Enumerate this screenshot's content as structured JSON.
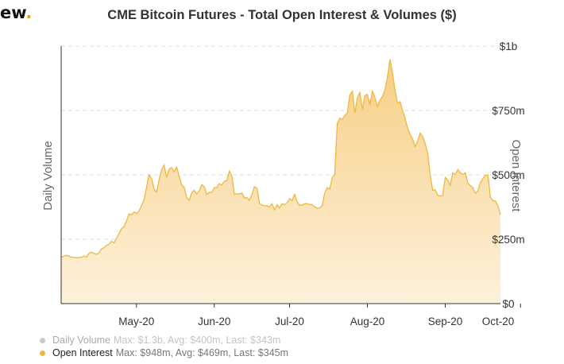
{
  "logo": {
    "text": "ew",
    "dot": "."
  },
  "chart_data": {
    "type": "area",
    "title": "CME Bitcoin Futures - Total Open Interest & Volumes ($)",
    "left_axis_label": "Daily Volume",
    "right_axis_label": "Open Interest",
    "y_ticks": [
      "$0",
      "$250m",
      "$500m",
      "$750m",
      "$1b"
    ],
    "y_tick_values": [
      0,
      250,
      500,
      750,
      1000
    ],
    "ylim": [
      0,
      1000
    ],
    "unit": "$m",
    "x_ticks": [
      "May-20",
      "Jun-20",
      "Jul-20",
      "Aug-20",
      "Sep-20",
      "Oct-20"
    ],
    "x_tick_days": [
      30,
      61,
      91,
      122,
      153,
      183
    ],
    "grid": "horizontal dashed",
    "legend_placement": "bottom-left",
    "colors": {
      "open_interest": "#f0b73f",
      "area_top": "#f7cf84",
      "area_bottom": "#fdf1dc",
      "volume_inactive": "#c9c9c9"
    },
    "series": [
      {
        "name": "Open Interest",
        "stats": "Max: $948m, Avg: $469m, Last: $345m",
        "points": [
          [
            0,
            180
          ],
          [
            2,
            188
          ],
          [
            4,
            181
          ],
          [
            6,
            178
          ],
          [
            8,
            180
          ],
          [
            9,
            185
          ],
          [
            10,
            180
          ],
          [
            11,
            194
          ],
          [
            12,
            200
          ],
          [
            13,
            196
          ],
          [
            14,
            191
          ],
          [
            15,
            196
          ],
          [
            16,
            212
          ],
          [
            17,
            216
          ],
          [
            18,
            226
          ],
          [
            19,
            230
          ],
          [
            20,
            242
          ],
          [
            21,
            236
          ],
          [
            22,
            252
          ],
          [
            23,
            272
          ],
          [
            24,
            290
          ],
          [
            25,
            298
          ],
          [
            26,
            320
          ],
          [
            27,
            348
          ],
          [
            28,
            345
          ],
          [
            29,
            356
          ],
          [
            30,
            350
          ],
          [
            31,
            360
          ],
          [
            32,
            380
          ],
          [
            33,
            402
          ],
          [
            34,
            450
          ],
          [
            35,
            500
          ],
          [
            36,
            486
          ],
          [
            37,
            445
          ],
          [
            38,
            432
          ],
          [
            39,
            480
          ],
          [
            40,
            520
          ],
          [
            41,
            538
          ],
          [
            42,
            490
          ],
          [
            43,
            522
          ],
          [
            44,
            528
          ],
          [
            45,
            512
          ],
          [
            46,
            530
          ],
          [
            47,
            496
          ],
          [
            48,
            460
          ],
          [
            49,
            452
          ],
          [
            50,
            412
          ],
          [
            51,
            402
          ],
          [
            52,
            430
          ],
          [
            53,
            440
          ],
          [
            54,
            426
          ],
          [
            55,
            438
          ],
          [
            56,
            462
          ],
          [
            57,
            454
          ],
          [
            58,
            424
          ],
          [
            59,
            432
          ],
          [
            60,
            432
          ],
          [
            61,
            450
          ],
          [
            62,
            450
          ],
          [
            63,
            466
          ],
          [
            64,
            460
          ],
          [
            65,
            476
          ],
          [
            66,
            478
          ],
          [
            67,
            514
          ],
          [
            68,
            495
          ],
          [
            69,
            426
          ],
          [
            70,
            426
          ],
          [
            71,
            426
          ],
          [
            72,
            430
          ],
          [
            73,
            410
          ],
          [
            74,
            412
          ],
          [
            75,
            402
          ],
          [
            76,
            424
          ],
          [
            77,
            454
          ],
          [
            78,
            448
          ],
          [
            79,
            390
          ],
          [
            80,
            382
          ],
          [
            81,
            380
          ],
          [
            82,
            380
          ],
          [
            83,
            375
          ],
          [
            84,
            388
          ],
          [
            85,
            364
          ],
          [
            86,
            384
          ],
          [
            87,
            372
          ],
          [
            88,
            388
          ],
          [
            89,
            384
          ],
          [
            90,
            392
          ],
          [
            91,
            408
          ],
          [
            92,
            400
          ],
          [
            93,
            424
          ],
          [
            94,
            396
          ],
          [
            95,
            382
          ],
          [
            96,
            382
          ],
          [
            97,
            388
          ],
          [
            98,
            388
          ],
          [
            99,
            385
          ],
          [
            100,
            385
          ],
          [
            101,
            376
          ],
          [
            102,
            370
          ],
          [
            103,
            372
          ],
          [
            104,
            380
          ],
          [
            105,
            430
          ],
          [
            106,
            450
          ],
          [
            107,
            445
          ],
          [
            108,
            490
          ],
          [
            109,
            500
          ],
          [
            110,
            700
          ],
          [
            111,
            720
          ],
          [
            112,
            716
          ],
          [
            113,
            730
          ],
          [
            114,
            740
          ],
          [
            115,
            810
          ],
          [
            116,
            825
          ],
          [
            117,
            740
          ],
          [
            118,
            800
          ],
          [
            119,
            820
          ],
          [
            120,
            755
          ],
          [
            121,
            808
          ],
          [
            122,
            812
          ],
          [
            123,
            772
          ],
          [
            124,
            825
          ],
          [
            125,
            800
          ],
          [
            126,
            765
          ],
          [
            127,
            790
          ],
          [
            128,
            805
          ],
          [
            129,
            830
          ],
          [
            130,
            880
          ],
          [
            131,
            948
          ],
          [
            132,
            895
          ],
          [
            133,
            828
          ],
          [
            134,
            778
          ],
          [
            135,
            784
          ],
          [
            136,
            750
          ],
          [
            137,
            720
          ],
          [
            138,
            682
          ],
          [
            139,
            658
          ],
          [
            140,
            640
          ],
          [
            141,
            610
          ],
          [
            142,
            630
          ],
          [
            143,
            662
          ],
          [
            144,
            650
          ],
          [
            145,
            622
          ],
          [
            146,
            585
          ],
          [
            147,
            500
          ],
          [
            148,
            440
          ],
          [
            149,
            442
          ],
          [
            150,
            420
          ],
          [
            151,
            418
          ],
          [
            152,
            420
          ],
          [
            153,
            490
          ],
          [
            154,
            480
          ],
          [
            155,
            460
          ],
          [
            156,
            508
          ],
          [
            157,
            500
          ],
          [
            158,
            520
          ],
          [
            159,
            508
          ],
          [
            160,
            502
          ],
          [
            161,
            508
          ],
          [
            162,
            468
          ],
          [
            163,
            458
          ],
          [
            164,
            450
          ],
          [
            165,
            428
          ],
          [
            166,
            438
          ],
          [
            167,
            470
          ],
          [
            168,
            486
          ],
          [
            169,
            498
          ],
          [
            170,
            500
          ],
          [
            171,
            412
          ],
          [
            172,
            400
          ],
          [
            173,
            398
          ],
          [
            174,
            380
          ],
          [
            175,
            345
          ]
        ]
      },
      {
        "name": "Daily Volume",
        "stats": "Max: $1.3b, Avg: $400m, Last: $343m",
        "visible": false
      }
    ]
  }
}
